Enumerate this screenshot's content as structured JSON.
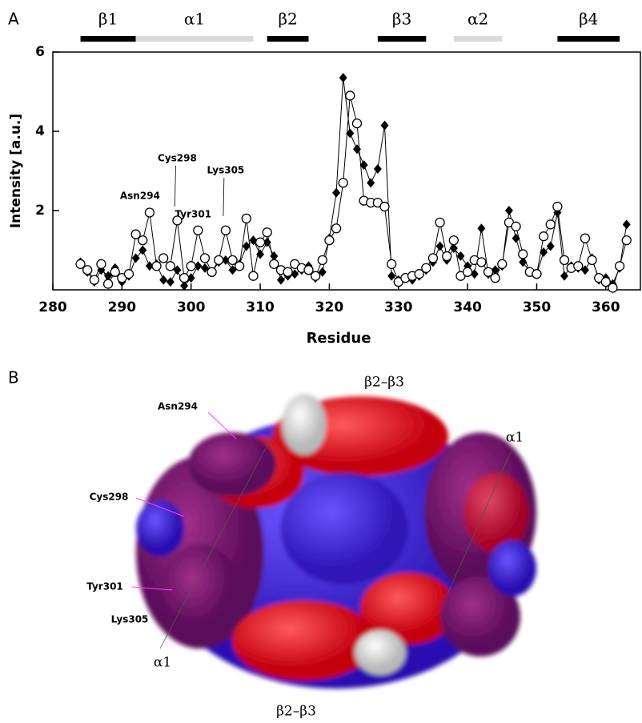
{
  "panels": [
    "A",
    "B"
  ],
  "chart_data": {
    "type": "line",
    "xlabel": "Residue",
    "ylabel": "Intensity [a.u.]",
    "xlim": [
      280,
      365
    ],
    "ylim": [
      0,
      6
    ],
    "xticks": [
      280,
      290,
      300,
      310,
      320,
      330,
      340,
      350,
      360
    ],
    "yticks": [
      2,
      4,
      6
    ],
    "secondary_structure": [
      {
        "label": "β1",
        "start": 284,
        "end": 292,
        "color": "#000000"
      },
      {
        "label": "α1",
        "start": 292,
        "end": 309,
        "color": "#d9d9d9"
      },
      {
        "label": "β2",
        "start": 311,
        "end": 317,
        "color": "#000000"
      },
      {
        "label": "β3",
        "start": 327,
        "end": 334,
        "color": "#000000"
      },
      {
        "label": "α2",
        "start": 338,
        "end": 345,
        "color": "#d9d9d9"
      },
      {
        "label": "β4",
        "start": 353,
        "end": 362,
        "color": "#000000"
      }
    ],
    "annotations": [
      {
        "text": "Asn294",
        "x": 294
      },
      {
        "text": "Cys298",
        "x": 298
      },
      {
        "text": "Tyr301",
        "x": 301
      },
      {
        "text": "Lys305",
        "x": 305
      }
    ],
    "x": [
      284,
      285,
      286,
      287,
      288,
      289,
      290,
      291,
      292,
      293,
      294,
      295,
      296,
      297,
      298,
      299,
      300,
      301,
      302,
      303,
      304,
      305,
      306,
      307,
      308,
      309,
      310,
      311,
      312,
      313,
      314,
      315,
      316,
      317,
      318,
      319,
      320,
      321,
      322,
      323,
      324,
      325,
      326,
      327,
      328,
      329,
      330,
      331,
      332,
      333,
      334,
      335,
      336,
      337,
      338,
      339,
      340,
      341,
      342,
      343,
      344,
      345,
      346,
      347,
      348,
      349,
      350,
      351,
      352,
      353,
      354,
      355,
      356,
      357,
      358,
      359,
      360,
      361,
      362,
      363
    ],
    "series": [
      {
        "marker": "diamond",
        "color": "#000000",
        "values": [
          0.7,
          0.45,
          0.2,
          0.5,
          0.35,
          0.55,
          0.2,
          0.35,
          0.8,
          1.0,
          0.6,
          0.65,
          0.25,
          0.2,
          0.5,
          0.1,
          0.3,
          0.6,
          0.55,
          0.45,
          0.7,
          0.75,
          0.5,
          0.65,
          1.1,
          1.25,
          0.9,
          1.2,
          0.85,
          0.25,
          0.35,
          0.4,
          0.5,
          0.6,
          0.3,
          0.45,
          1.3,
          2.45,
          5.35,
          3.95,
          3.55,
          3.15,
          2.7,
          3.05,
          4.15,
          0.35,
          0.25,
          0.3,
          0.25,
          0.35,
          0.5,
          0.7,
          1.1,
          0.75,
          1.05,
          0.85,
          0.6,
          0.4,
          1.55,
          0.4,
          0.5,
          0.6,
          2.0,
          1.3,
          0.7,
          0.45,
          0.4,
          0.95,
          1.1,
          1.95,
          0.35,
          0.6,
          0.55,
          0.5,
          0.8,
          0.25,
          0.3,
          0.15,
          0.55,
          1.65
        ]
      },
      {
        "marker": "circle",
        "color": "#000000",
        "values": [
          0.65,
          0.5,
          0.25,
          0.65,
          0.15,
          0.45,
          0.3,
          0.4,
          1.4,
          1.25,
          1.95,
          0.6,
          0.8,
          0.6,
          1.75,
          0.3,
          0.6,
          1.5,
          0.8,
          0.45,
          0.75,
          1.5,
          0.75,
          0.6,
          1.8,
          0.35,
          1.2,
          1.45,
          0.65,
          0.5,
          0.45,
          0.65,
          0.55,
          0.5,
          0.35,
          0.75,
          1.25,
          1.55,
          2.7,
          4.9,
          4.2,
          2.25,
          2.2,
          2.2,
          2.1,
          0.65,
          0.2,
          0.3,
          0.35,
          0.4,
          0.55,
          0.8,
          1.7,
          0.85,
          1.25,
          0.35,
          0.45,
          0.75,
          0.7,
          0.45,
          0.3,
          0.65,
          1.7,
          1.6,
          0.9,
          0.45,
          0.4,
          1.35,
          1.65,
          2.1,
          0.75,
          0.55,
          0.6,
          1.3,
          0.75,
          0.3,
          0.2,
          0.05,
          0.6,
          1.25
        ]
      }
    ]
  },
  "panel_b": {
    "labels": [
      "β2–β3",
      "α1",
      "Asn294",
      "Cys298",
      "Tyr301",
      "Lys305",
      "α1",
      "β2–β3"
    ]
  }
}
